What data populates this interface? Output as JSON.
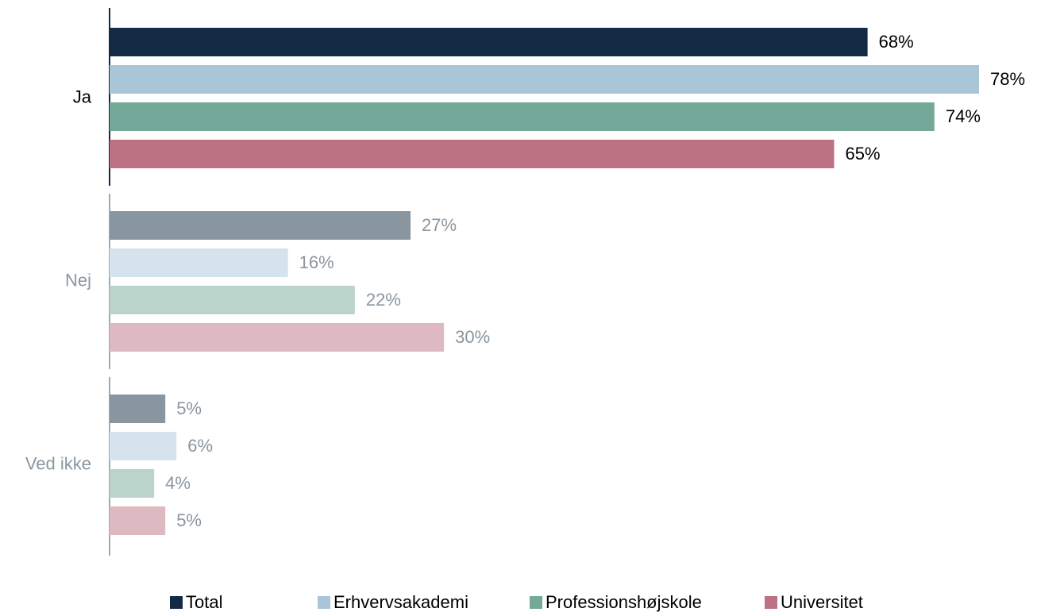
{
  "chart_data": {
    "type": "bar",
    "orientation": "horizontal",
    "categories": [
      "Ja",
      "Nej",
      "Ved ikke"
    ],
    "highlight": "Ja",
    "xlim": [
      0,
      78
    ],
    "series": [
      {
        "name": "Total",
        "color": "#132a45",
        "muted_color": "#8a969f",
        "values": [
          68,
          27,
          5
        ],
        "value_labels": [
          "68%",
          "27%",
          "5%"
        ]
      },
      {
        "name": "Erhvervsakademi",
        "color": "#a9c6d9",
        "muted_color": "#d4e3ec",
        "values": [
          78,
          16,
          6
        ],
        "value_labels": [
          "78%",
          "16%",
          "6%"
        ]
      },
      {
        "name": "Professionshøjskole",
        "color": "#74a99a",
        "muted_color": "#bad4cc",
        "values": [
          74,
          22,
          4
        ],
        "value_labels": [
          "74%",
          "22%",
          "4%"
        ]
      },
      {
        "name": "Universitet",
        "color": "#bc7282",
        "muted_color": "#ddb9c1",
        "values": [
          65,
          30,
          5
        ],
        "value_labels": [
          "65%",
          "30%",
          "5%"
        ]
      }
    ],
    "legend": "bottom"
  }
}
